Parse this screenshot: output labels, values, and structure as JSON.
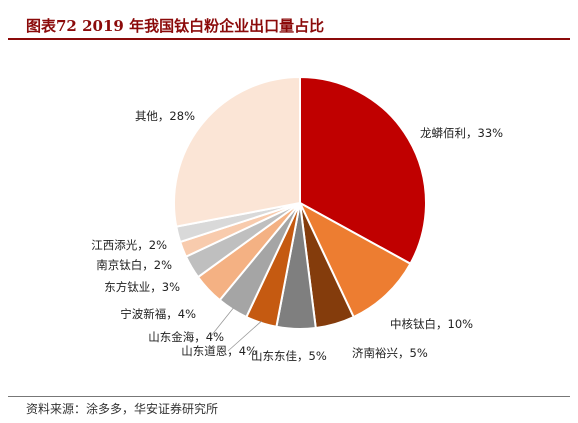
{
  "header": {
    "title": "图表72    2019 年我国钛白粉企业出口量占比"
  },
  "footer": {
    "source": "资料来源：涂多多，华安证券研究所"
  },
  "chart_data": {
    "type": "pie",
    "title": "图表72    2019 年我国钛白粉企业出口量占比",
    "slices": [
      {
        "label": "龙蟒佰利，33%",
        "value": 33,
        "color": "#C00000"
      },
      {
        "label": "中核钛白，10%",
        "value": 10,
        "color": "#ED7D31"
      },
      {
        "label": "济南裕兴，5%",
        "value": 5,
        "color": "#843C0C"
      },
      {
        "label": "山东东佳，5%",
        "value": 5,
        "color": "#7F7F7F"
      },
      {
        "label": "山东道恩，4%",
        "value": 4,
        "color": "#C55A11"
      },
      {
        "label": "山东金海，4%",
        "value": 4,
        "color": "#A5A5A5"
      },
      {
        "label": "宁波新福，4%",
        "value": 4,
        "color": "#F4B183"
      },
      {
        "label": "东方钛业，3%",
        "value": 3,
        "color": "#BFBFBF"
      },
      {
        "label": "南京钛白，2%",
        "value": 2,
        "color": "#F8CBAD"
      },
      {
        "label": "江西添光，2%",
        "value": 2,
        "color": "#D9D9D9"
      },
      {
        "label": "其他，28%",
        "value": 28,
        "color": "#FBE5D6"
      }
    ],
    "start_angle_deg": 0,
    "direction": "clockwise",
    "legend": "none"
  }
}
